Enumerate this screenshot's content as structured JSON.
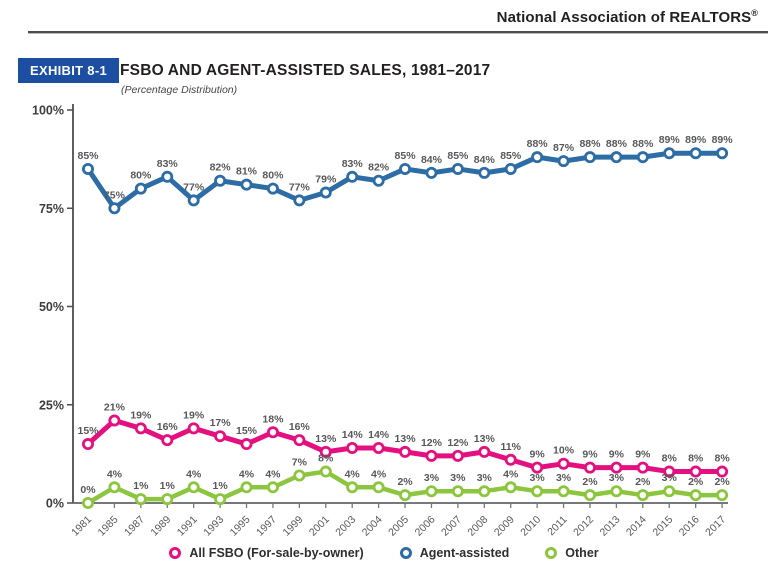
{
  "header": {
    "org_name": "National Association of REALTORS",
    "org_name_reg": "®"
  },
  "exhibit": {
    "badge": "EXHIBIT 8-1",
    "badge_color": "#1c4fa1",
    "title": "FSBO AND AGENT-ASSISTED SALES, 1981–2017",
    "subtitle": "(Percentage Distribution)"
  },
  "chart_data": {
    "type": "line",
    "title": "FSBO AND AGENT-ASSISTED SALES, 1981–2017",
    "subtitle": "(Percentage Distribution)",
    "categories": [
      "1981",
      "1985",
      "1987",
      "1989",
      "1991",
      "1993",
      "1995",
      "1997",
      "1999",
      "2001",
      "2003",
      "2004",
      "2005",
      "2006",
      "2007",
      "2008",
      "2009",
      "2010",
      "2011",
      "2012",
      "2013",
      "2014",
      "2015",
      "2016",
      "2017"
    ],
    "series": [
      {
        "id": "fsbo",
        "name": "All FSBO (For-sale-by-owner)",
        "color": "#e5107f",
        "width": 5,
        "values": [
          15,
          21,
          19,
          16,
          19,
          17,
          15,
          18,
          16,
          13,
          14,
          14,
          13,
          12,
          12,
          13,
          11,
          9,
          10,
          9,
          9,
          9,
          8,
          8,
          8
        ]
      },
      {
        "id": "agent-assisted",
        "name": "Agent-assisted",
        "color": "#2d6ca5",
        "width": 5,
        "values": [
          85,
          75,
          80,
          83,
          77,
          82,
          81,
          80,
          77,
          79,
          83,
          82,
          85,
          84,
          85,
          84,
          85,
          88,
          87,
          88,
          88,
          88,
          89,
          89,
          89
        ]
      },
      {
        "id": "other",
        "name": "Other",
        "color": "#8cc63e",
        "width": 4.5,
        "values": [
          0,
          4,
          1,
          1,
          4,
          1,
          4,
          4,
          7,
          8,
          4,
          4,
          2,
          3,
          3,
          3,
          4,
          3,
          3,
          2,
          3,
          2,
          3,
          2,
          2
        ]
      }
    ],
    "ytick_labels": [
      "0%",
      "25%",
      "50%",
      "75%",
      "100%"
    ],
    "ylim": [
      0,
      100
    ],
    "xlabel": "",
    "ylabel": "",
    "grid": false,
    "data_labels": true,
    "legend_position": "bottom"
  }
}
